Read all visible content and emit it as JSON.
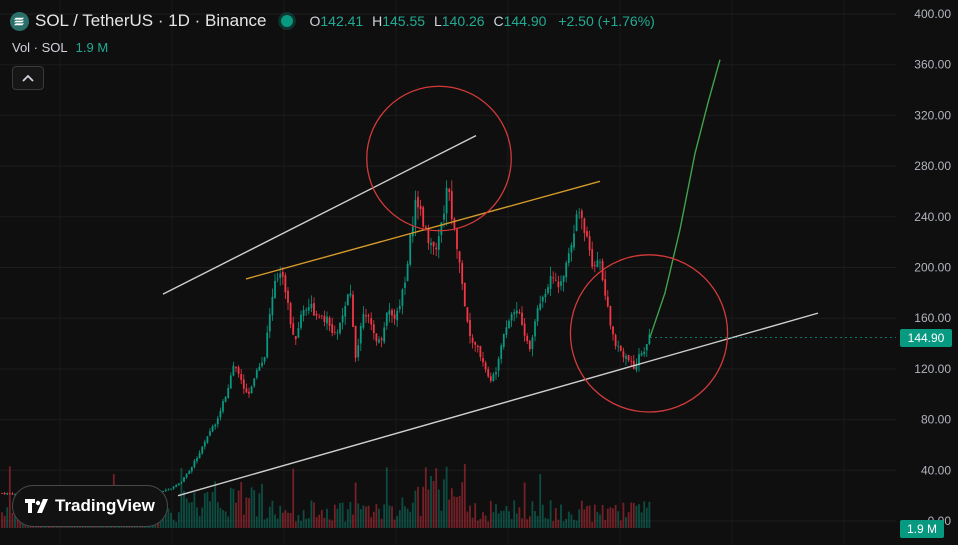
{
  "header": {
    "symbol": "SOL / TetherUS · 1D · Binance",
    "ohlc": [
      {
        "key": "O",
        "value": "142.41"
      },
      {
        "key": "H",
        "value": "145.55"
      },
      {
        "key": "L",
        "value": "140.26"
      },
      {
        "key": "C",
        "value": "144.90"
      }
    ],
    "change": "+2.50 (+1.76%)"
  },
  "volume": {
    "label": "Vol · SOL",
    "value": "1.9 M"
  },
  "branding": {
    "name": "TradingView"
  },
  "colors": {
    "up": "#089981",
    "down": "#f23645",
    "background": "#0f0f0f"
  },
  "chart_data": {
    "type": "candlestick",
    "y_axis": {
      "ticks": [
        "0.00",
        "40.00",
        "80.00",
        "120.00",
        "160.00",
        "200.00",
        "240.00",
        "280.00",
        "320.00",
        "360.00",
        "400.00"
      ],
      "ylim": [
        0,
        400
      ]
    },
    "last_price_label": "144.90",
    "last_volume_label": "1.9 M",
    "price_path": [
      [
        0,
        22
      ],
      [
        40,
        20
      ],
      [
        80,
        21
      ],
      [
        105,
        20
      ],
      [
        125,
        19
      ],
      [
        140,
        18
      ],
      [
        150,
        21
      ],
      [
        160,
        24
      ],
      [
        170,
        25
      ],
      [
        180,
        30
      ],
      [
        190,
        40
      ],
      [
        200,
        55
      ],
      [
        210,
        70
      ],
      [
        220,
        85
      ],
      [
        228,
        105
      ],
      [
        234,
        125
      ],
      [
        240,
        112
      ],
      [
        248,
        100
      ],
      [
        256,
        118
      ],
      [
        264,
        128
      ],
      [
        270,
        165
      ],
      [
        276,
        190
      ],
      [
        282,
        200
      ],
      [
        288,
        170
      ],
      [
        294,
        140
      ],
      [
        302,
        165
      ],
      [
        310,
        172
      ],
      [
        318,
        158
      ],
      [
        326,
        160
      ],
      [
        334,
        145
      ],
      [
        342,
        158
      ],
      [
        350,
        182
      ],
      [
        356,
        128
      ],
      [
        364,
        170
      ],
      [
        372,
        150
      ],
      [
        380,
        140
      ],
      [
        388,
        168
      ],
      [
        396,
        160
      ],
      [
        404,
        185
      ],
      [
        410,
        220
      ],
      [
        416,
        256
      ],
      [
        422,
        240
      ],
      [
        428,
        225
      ],
      [
        436,
        210
      ],
      [
        442,
        235
      ],
      [
        448,
        265
      ],
      [
        454,
        230
      ],
      [
        460,
        205
      ],
      [
        466,
        162
      ],
      [
        472,
        140
      ],
      [
        478,
        135
      ],
      [
        484,
        125
      ],
      [
        490,
        108
      ],
      [
        496,
        120
      ],
      [
        502,
        145
      ],
      [
        510,
        162
      ],
      [
        518,
        168
      ],
      [
        524,
        148
      ],
      [
        530,
        135
      ],
      [
        538,
        170
      ],
      [
        546,
        182
      ],
      [
        552,
        200
      ],
      [
        558,
        180
      ],
      [
        564,
        195
      ],
      [
        570,
        218
      ],
      [
        576,
        238
      ],
      [
        580,
        245
      ],
      [
        586,
        225
      ],
      [
        592,
        200
      ],
      [
        598,
        210
      ],
      [
        604,
        185
      ],
      [
        610,
        155
      ],
      [
        616,
        140
      ],
      [
        622,
        133
      ],
      [
        628,
        128
      ],
      [
        634,
        120
      ],
      [
        640,
        132
      ],
      [
        646,
        138
      ],
      [
        650,
        145
      ]
    ],
    "projection": [
      [
        650,
        145
      ],
      [
        665,
        180
      ],
      [
        680,
        230
      ],
      [
        695,
        290
      ],
      [
        708,
        330
      ],
      [
        720,
        364
      ]
    ],
    "annotations": [
      {
        "type": "trendline",
        "color": "#cfcfcf",
        "from": [
          163,
          179
        ],
        "to": [
          476,
          304
        ]
      },
      {
        "type": "trendline",
        "color": "#d49a2a",
        "from": [
          246,
          191
        ],
        "to": [
          600,
          268
        ]
      },
      {
        "type": "trendline",
        "color": "#cfcfcf",
        "from": [
          178,
          20
        ],
        "to": [
          818,
          164
        ]
      },
      {
        "type": "circle",
        "color": "#d23a3a",
        "center": [
          439,
          286
        ],
        "radius_t": 57
      },
      {
        "type": "circle",
        "color": "#d23a3a",
        "center": [
          649,
          148
        ],
        "radius_t": 62
      }
    ]
  }
}
